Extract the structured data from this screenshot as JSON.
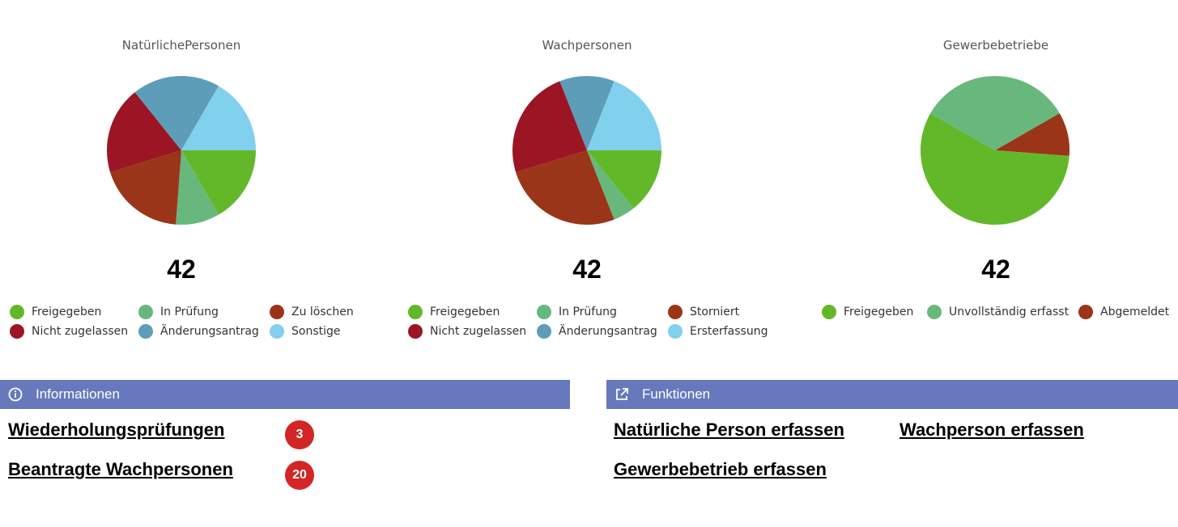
{
  "chart_data": [
    {
      "type": "pie",
      "title": "NatürlichePersonen",
      "total": "42",
      "series": [
        {
          "name": "Freigegeben",
          "value": 7,
          "color": "#63b82a"
        },
        {
          "name": "In Prüfung",
          "value": 4,
          "color": "#68b87e"
        },
        {
          "name": "Zu löschen",
          "value": 8,
          "color": "#9b3519"
        },
        {
          "name": "Nicht zugelassen",
          "value": 8,
          "color": "#9b1525"
        },
        {
          "name": "Änderungsantrag",
          "value": 8,
          "color": "#5d9db7"
        },
        {
          "name": "Sonstige",
          "value": 7,
          "color": "#80d0ee"
        }
      ],
      "slice_order": [
        "Freigegeben",
        "In Prüfung",
        "Zu löschen",
        "Nicht zugelassen",
        "Änderungsantrag",
        "Sonstige"
      ]
    },
    {
      "type": "pie",
      "title": "Wachpersonen",
      "total": "42",
      "series": [
        {
          "name": "Freigegeben",
          "value": 6,
          "color": "#63b82a"
        },
        {
          "name": "In Prüfung",
          "value": 2,
          "color": "#68b87e"
        },
        {
          "name": "Storniert",
          "value": 11,
          "color": "#9b3519"
        },
        {
          "name": "Nicht zugelassen",
          "value": 10,
          "color": "#9b1525"
        },
        {
          "name": "Änderungsantrag",
          "value": 5,
          "color": "#5d9db7"
        },
        {
          "name": "Ersterfassung",
          "value": 8,
          "color": "#80d0ee"
        }
      ],
      "slice_order": [
        "Freigegeben",
        "In Prüfung",
        "Storniert",
        "Nicht zugelassen",
        "Änderungsantrag",
        "Ersterfassung"
      ]
    },
    {
      "type": "pie",
      "title": "Gewerbebetriebe",
      "total": "42",
      "series": [
        {
          "name": "Freigegeben",
          "value": 24,
          "color": "#63b82a"
        },
        {
          "name": "Unvollständig erfasst",
          "value": 14,
          "color": "#68b87e"
        },
        {
          "name": "Abgemeldet",
          "value": 4,
          "color": "#9b3519"
        }
      ],
      "slice_order": [
        "Abgemeldet",
        "Freigegeben",
        "Unvollständig erfasst"
      ]
    }
  ],
  "info_panel": {
    "title": "Informationen",
    "icon": "info-icon",
    "items": [
      {
        "label": "Wiederholungsprüfungen",
        "count": "3"
      },
      {
        "label": "Beantragte Wachpersonen",
        "count": "20"
      }
    ]
  },
  "functions_panel": {
    "title": "Funktionen",
    "icon": "external-link-icon",
    "links": [
      {
        "label": "Natürliche Person erfassen"
      },
      {
        "label": "Wachperson erfassen"
      },
      {
        "label": "Gewerbebetrieb erfassen"
      }
    ]
  },
  "colors": {
    "panel_header": "#6779bc",
    "badge": "#d32525"
  }
}
